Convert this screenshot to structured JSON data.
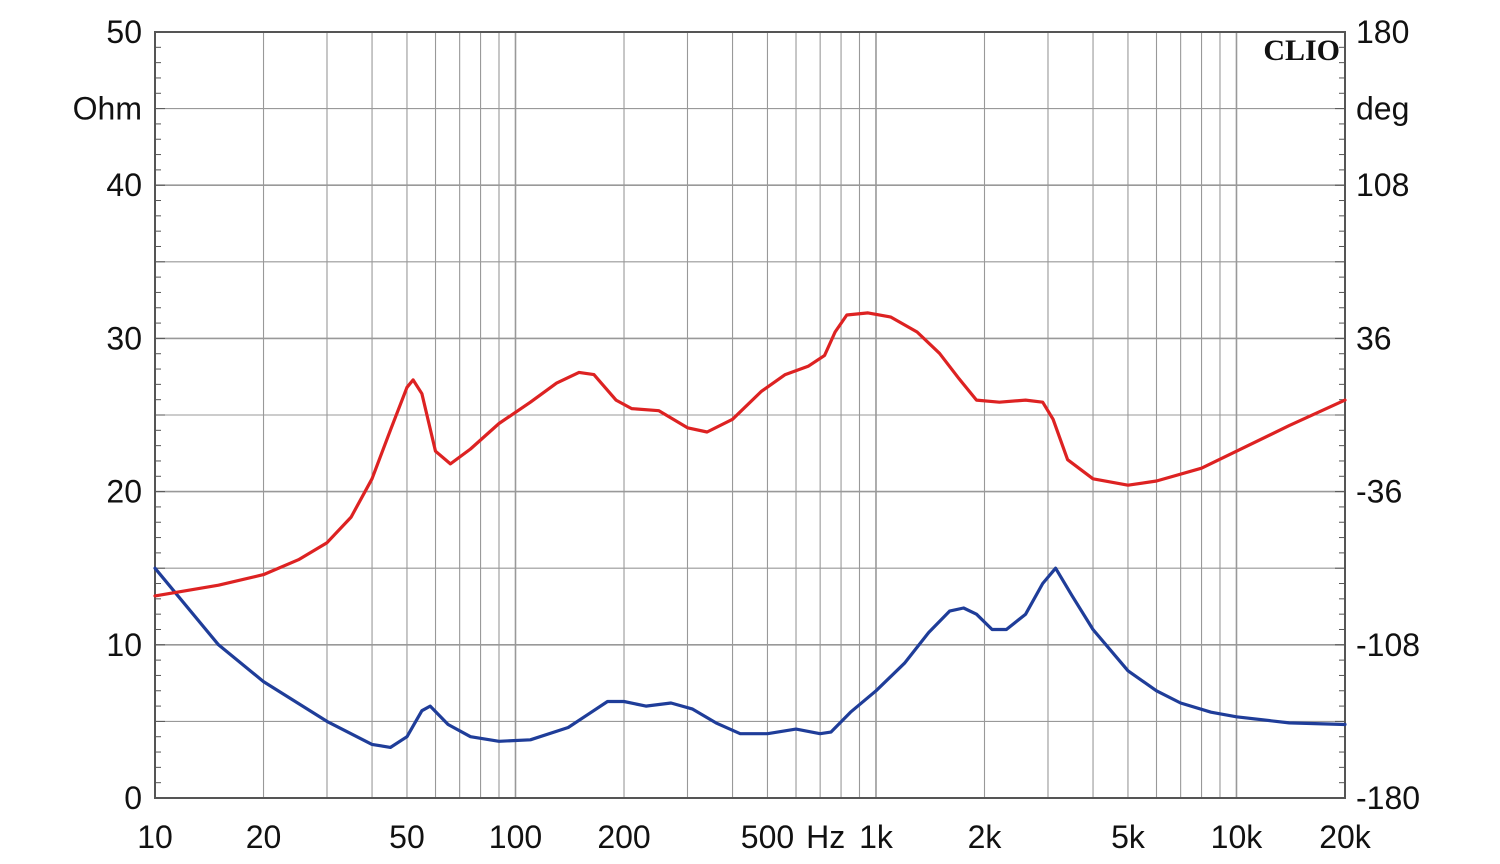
{
  "chart_data": {
    "type": "line",
    "brand": "CLIO",
    "x_scale": "log",
    "xlim": [
      10,
      20000
    ],
    "y_left": {
      "unit": "Ohm",
      "lim": [
        0,
        50
      ],
      "ticks": [
        "0",
        "10",
        "20",
        "30",
        "40",
        "50"
      ]
    },
    "y_right": {
      "unit": "deg",
      "lim": [
        -180,
        180
      ],
      "ticks": [
        "-180",
        "-108",
        "-36",
        "36",
        "108",
        "180"
      ]
    },
    "x_ticks": [
      {
        "value": 10,
        "label": "10"
      },
      {
        "value": 20,
        "label": "20"
      },
      {
        "value": 50,
        "label": "50"
      },
      {
        "value": 100,
        "label": "100"
      },
      {
        "value": 200,
        "label": "200"
      },
      {
        "value": 500,
        "label": "500"
      },
      {
        "value": 1000,
        "label": "1k"
      },
      {
        "value": 2000,
        "label": "2k"
      },
      {
        "value": 5000,
        "label": "5k"
      },
      {
        "value": 10000,
        "label": "10k"
      },
      {
        "value": 20000,
        "label": "20k"
      }
    ],
    "x_unit": "Hz",
    "grid": true,
    "colors": {
      "impedance": "#1f3d99",
      "phase": "#dd2222",
      "grid": "#999999",
      "axes": "#555555"
    },
    "series": [
      {
        "axis": "left",
        "color": "#1f3d99",
        "points": [
          [
            10,
            15.0
          ],
          [
            15,
            10.0
          ],
          [
            20,
            7.6
          ],
          [
            30,
            5.0
          ],
          [
            40,
            3.5
          ],
          [
            45,
            3.3
          ],
          [
            50,
            4.0
          ],
          [
            55,
            5.7
          ],
          [
            58,
            6.0
          ],
          [
            65,
            4.8
          ],
          [
            75,
            4.0
          ],
          [
            90,
            3.7
          ],
          [
            110,
            3.8
          ],
          [
            140,
            4.6
          ],
          [
            160,
            5.5
          ],
          [
            180,
            6.3
          ],
          [
            200,
            6.3
          ],
          [
            230,
            6.0
          ],
          [
            270,
            6.2
          ],
          [
            310,
            5.8
          ],
          [
            360,
            4.9
          ],
          [
            420,
            4.2
          ],
          [
            500,
            4.2
          ],
          [
            600,
            4.5
          ],
          [
            700,
            4.2
          ],
          [
            750,
            4.3
          ],
          [
            850,
            5.6
          ],
          [
            1000,
            7.0
          ],
          [
            1200,
            8.8
          ],
          [
            1400,
            10.8
          ],
          [
            1600,
            12.2
          ],
          [
            1750,
            12.4
          ],
          [
            1900,
            12.0
          ],
          [
            2100,
            11.0
          ],
          [
            2300,
            11.0
          ],
          [
            2600,
            12.0
          ],
          [
            2900,
            14.0
          ],
          [
            3150,
            15.0
          ],
          [
            3500,
            13.2
          ],
          [
            4000,
            11.0
          ],
          [
            5000,
            8.3
          ],
          [
            6000,
            7.0
          ],
          [
            7000,
            6.2
          ],
          [
            8500,
            5.6
          ],
          [
            10000,
            5.3
          ],
          [
            14000,
            4.9
          ],
          [
            20000,
            4.8
          ]
        ]
      },
      {
        "axis": "right",
        "color": "#dd2222",
        "points": [
          [
            10,
            -85.0
          ],
          [
            15,
            -80.0
          ],
          [
            20,
            -75.0
          ],
          [
            25,
            -68.0
          ],
          [
            30,
            -60.0
          ],
          [
            35,
            -48.0
          ],
          [
            40,
            -30.0
          ],
          [
            45,
            -7.0
          ],
          [
            50,
            13.0
          ],
          [
            52,
            16.5
          ],
          [
            55,
            10.0
          ],
          [
            60,
            -17.0
          ],
          [
            66,
            -23.0
          ],
          [
            75,
            -16.0
          ],
          [
            90,
            -4.0
          ],
          [
            110,
            6.0
          ],
          [
            130,
            15.0
          ],
          [
            150,
            20.0
          ],
          [
            165,
            19.0
          ],
          [
            190,
            7.0
          ],
          [
            210,
            3.0
          ],
          [
            250,
            2.0
          ],
          [
            300,
            -6.0
          ],
          [
            340,
            -8.0
          ],
          [
            400,
            -2.0
          ],
          [
            480,
            11.0
          ],
          [
            560,
            19.0
          ],
          [
            650,
            23.0
          ],
          [
            720,
            28.0
          ],
          [
            770,
            39.0
          ],
          [
            830,
            47.0
          ],
          [
            950,
            48.0
          ],
          [
            1100,
            46.0
          ],
          [
            1300,
            39.0
          ],
          [
            1500,
            29.0
          ],
          [
            1700,
            17.0
          ],
          [
            1900,
            7.0
          ],
          [
            2200,
            6.0
          ],
          [
            2600,
            7.0
          ],
          [
            2900,
            6.0
          ],
          [
            3100,
            -2.0
          ],
          [
            3400,
            -21.0
          ],
          [
            4000,
            -30.0
          ],
          [
            5000,
            -33.0
          ],
          [
            6000,
            -31.0
          ],
          [
            8000,
            -25.0
          ],
          [
            10000,
            -17.0
          ],
          [
            14000,
            -5.0
          ],
          [
            20000,
            7.0
          ]
        ]
      }
    ]
  }
}
